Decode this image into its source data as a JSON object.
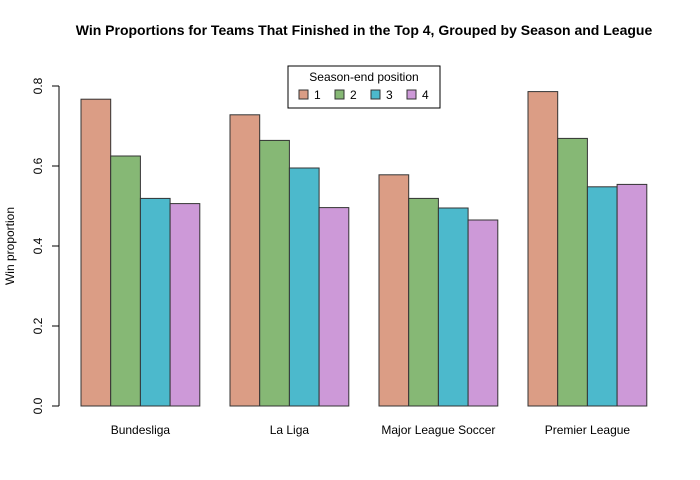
{
  "chart_data": {
    "type": "bar",
    "title": "Win Proportions for Teams That Finished in the Top 4, Grouped by Season and League",
    "xlabel": "",
    "ylabel": "Win proportion",
    "ylim": [
      0,
      0.8
    ],
    "yticks": [
      "0.0",
      "0.2",
      "0.4",
      "0.6",
      "0.8"
    ],
    "categories": [
      "Bundesliga",
      "La Liga",
      "Major League Soccer",
      "Premier League"
    ],
    "legend": {
      "title": "Season-end position",
      "placement": "top"
    },
    "grid": false,
    "series": [
      {
        "name": "1",
        "color": "#DB9D85",
        "values": [
          0.767,
          0.728,
          0.578,
          0.786
        ]
      },
      {
        "name": "2",
        "color": "#86B875",
        "values": [
          0.625,
          0.664,
          0.519,
          0.669
        ]
      },
      {
        "name": "3",
        "color": "#4CB9CC",
        "values": [
          0.519,
          0.595,
          0.495,
          0.548
        ]
      },
      {
        "name": "4",
        "color": "#CD99D8",
        "values": [
          0.506,
          0.496,
          0.465,
          0.554
        ]
      }
    ]
  }
}
